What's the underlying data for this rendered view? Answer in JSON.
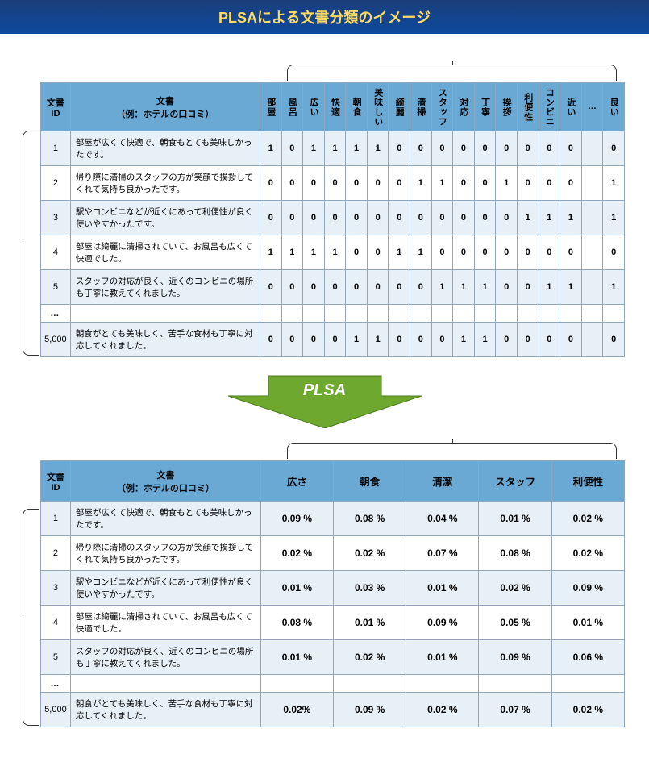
{
  "title": "PLSAによる文書分類のイメージ",
  "arrow_label": "PLSA",
  "arrow_color": "#6fa82e",
  "header_bg": "#6aa9d4",
  "table1": {
    "id_header": "文書\nID",
    "doc_header": "文書\n（例：ホテルの口コミ）",
    "word_headers": [
      "部屋",
      "風呂",
      "広い",
      "快適",
      "朝食",
      "美味しい",
      "綺麗",
      "清掃",
      "スタッフ",
      "対応",
      "丁寧",
      "挨拶",
      "利便性",
      "コンビニ",
      "近い",
      "…",
      "良い"
    ],
    "rows": [
      {
        "id": "1",
        "doc": "部屋が広くて快適で、朝食もとても美味しかったです。",
        "v": [
          "1",
          "0",
          "1",
          "1",
          "1",
          "1",
          "0",
          "0",
          "0",
          "0",
          "0",
          "0",
          "0",
          "0",
          "0",
          "",
          "0"
        ]
      },
      {
        "id": "2",
        "doc": "帰り際に清掃のスタッフの方が笑顔で挨拶してくれて気持ち良かったです。",
        "v": [
          "0",
          "0",
          "0",
          "0",
          "0",
          "0",
          "0",
          "1",
          "1",
          "0",
          "0",
          "1",
          "0",
          "0",
          "0",
          "",
          "1"
        ]
      },
      {
        "id": "3",
        "doc": "駅やコンビニなどが近くにあって利便性が良く使いやすかったです。",
        "v": [
          "0",
          "0",
          "0",
          "0",
          "0",
          "0",
          "0",
          "0",
          "0",
          "0",
          "0",
          "0",
          "1",
          "1",
          "1",
          "",
          "1"
        ]
      },
      {
        "id": "4",
        "doc": "部屋は綺麗に清掃されていて、お風呂も広くて快適でした。",
        "v": [
          "1",
          "1",
          "1",
          "1",
          "0",
          "0",
          "1",
          "1",
          "0",
          "0",
          "0",
          "0",
          "0",
          "0",
          "0",
          "",
          "0"
        ]
      },
      {
        "id": "5",
        "doc": "スタッフの対応が良く、近くのコンビニの場所も丁寧に教えてくれました。",
        "v": [
          "0",
          "0",
          "0",
          "0",
          "0",
          "0",
          "0",
          "0",
          "1",
          "1",
          "1",
          "0",
          "0",
          "1",
          "1",
          "",
          "1"
        ]
      },
      {
        "id": "…",
        "doc": "",
        "v": [
          "",
          "",
          "",
          "",
          "",
          "",
          "",
          "",
          "",
          "",
          "",
          "",
          "",
          "",
          "",
          "",
          ""
        ]
      },
      {
        "id": "5,000",
        "doc": "朝食がとても美味しく、苦手な食材も丁寧に対応してくれました。",
        "v": [
          "0",
          "0",
          "0",
          "0",
          "1",
          "1",
          "0",
          "0",
          "0",
          "1",
          "1",
          "0",
          "0",
          "0",
          "0",
          "",
          "0"
        ]
      }
    ]
  },
  "table2": {
    "id_header": "文書\nID",
    "doc_header": "文書\n（例：ホテルの口コミ）",
    "topic_headers": [
      "広さ",
      "朝食",
      "清潔",
      "スタッフ",
      "利便性"
    ],
    "rows": [
      {
        "id": "1",
        "doc": "部屋が広くて快適で、朝食もとても美味しかったです。",
        "v": [
          "0.09 %",
          "0.08 %",
          "0.04 %",
          "0.01 %",
          "0.02 %"
        ]
      },
      {
        "id": "2",
        "doc": "帰り際に清掃のスタッフの方が笑顔で挨拶してくれて気持ち良かったです。",
        "v": [
          "0.02 %",
          "0.02 %",
          "0.07 %",
          "0.08 %",
          "0.02 %"
        ]
      },
      {
        "id": "3",
        "doc": "駅やコンビニなどが近くにあって利便性が良く使いやすかったです。",
        "v": [
          "0.01 %",
          "0.03 %",
          "0.01 %",
          "0.02 %",
          "0.09 %"
        ]
      },
      {
        "id": "4",
        "doc": "部屋は綺麗に清掃されていて、お風呂も広くて快適でした。",
        "v": [
          "0.08 %",
          "0.01 %",
          "0.09 %",
          "0.05 %",
          "0.01 %"
        ]
      },
      {
        "id": "5",
        "doc": "スタッフの対応が良く、近くのコンビニの場所も丁寧に教えてくれました。",
        "v": [
          "0.01 %",
          "0.02 %",
          "0.01 %",
          "0.09 %",
          "0.06 %"
        ]
      },
      {
        "id": "…",
        "doc": "",
        "v": [
          "",
          "",
          "",
          "",
          ""
        ]
      },
      {
        "id": "5,000",
        "doc": "朝食がとても美味しく、苦手な食材も丁寧に対応してくれました。",
        "v": [
          "0.02%",
          "0.09 %",
          "0.02 %",
          "0.07 %",
          "0.02 %"
        ]
      }
    ]
  }
}
